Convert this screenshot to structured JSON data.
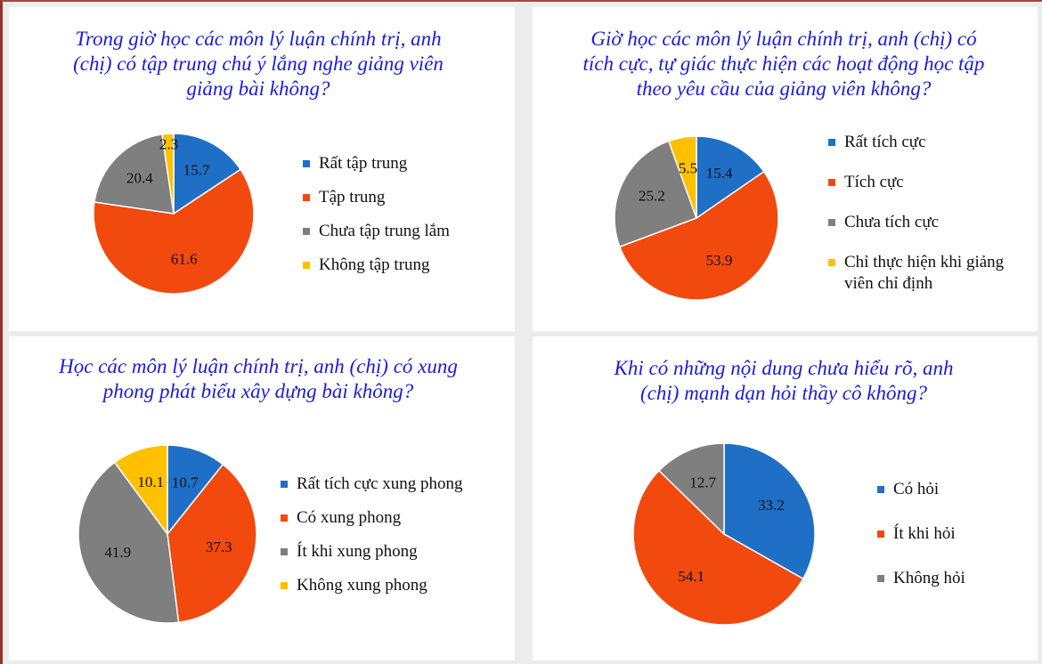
{
  "chart_data": [
    {
      "type": "pie",
      "title": "Trong giờ học các môn lý luận chính trị, anh (chị) có tập trung chú ý lắng nghe giảng viên giảng bài không?",
      "categories": [
        "Rất tập trung",
        "Tập trung",
        "Chưa tập trung lắm",
        "Không tập trung"
      ],
      "values": [
        15.7,
        61.6,
        20.4,
        2.3
      ],
      "colors": [
        "#1f6fc6",
        "#f2490f",
        "#7f7f7f",
        "#ffc000"
      ]
    },
    {
      "type": "pie",
      "title": "Giờ học các môn lý luận chính trị, anh (chị) có tích cực, tự giác thực hiện các hoạt động học tập theo yêu cầu của giảng viên không?",
      "categories": [
        "Rất tích cực",
        "Tích cực",
        "Chưa tích cực",
        "Chỉ thực hiện khi giảng viên chỉ định"
      ],
      "values": [
        15.4,
        53.9,
        25.2,
        5.5
      ],
      "colors": [
        "#1f6fc6",
        "#f2490f",
        "#7f7f7f",
        "#ffc000"
      ]
    },
    {
      "type": "pie",
      "title": "Học các môn lý luận chính trị, anh (chị) có xung phong phát biểu xây dựng bài không?",
      "categories": [
        "Rất tích cực xung phong",
        "Có xung phong",
        "Ít khi xung phong",
        "Không xung phong"
      ],
      "values": [
        10.7,
        37.3,
        41.9,
        10.1
      ],
      "colors": [
        "#1f6fc6",
        "#f2490f",
        "#7f7f7f",
        "#ffc000"
      ]
    },
    {
      "type": "pie",
      "title": "Khi có những nội dung chưa hiểu rõ, anh (chị) mạnh dạn hỏi thầy cô không?",
      "categories": [
        "Có hỏi",
        "Ít khi hỏi",
        "Không hỏi"
      ],
      "values": [
        33.2,
        54.1,
        12.7
      ],
      "colors": [
        "#1f6fc6",
        "#f2490f",
        "#7f7f7f"
      ]
    }
  ]
}
